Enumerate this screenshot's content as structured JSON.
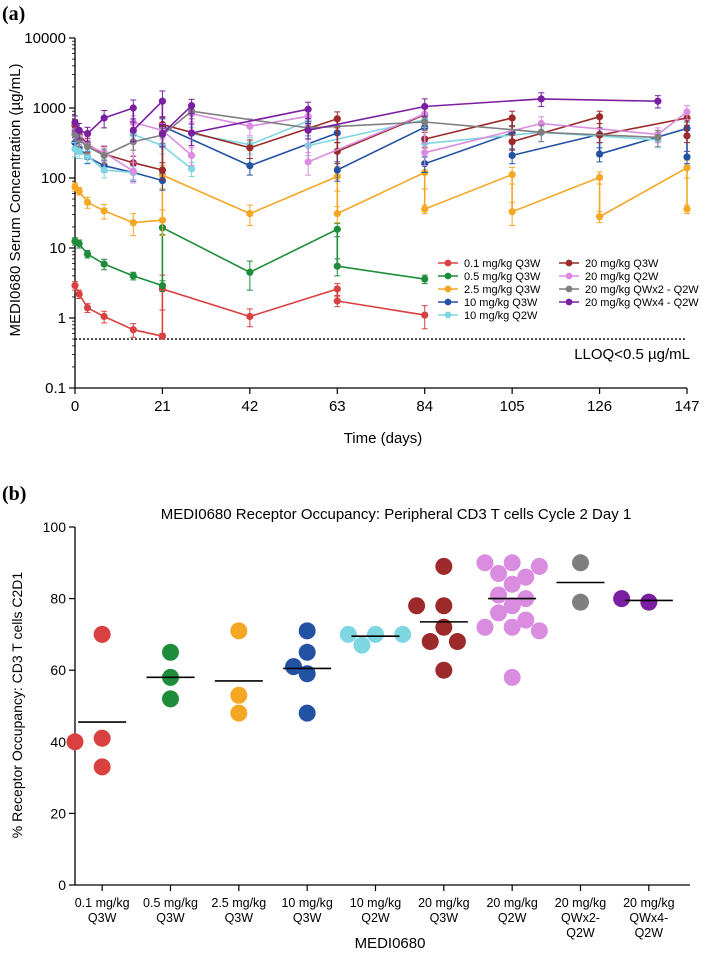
{
  "chart_data": [
    {
      "type": "line",
      "panel_label": "(a)",
      "xlabel": "Time (days)",
      "ylabel": "MEDI0680 Serum Concentration (µg/mL)",
      "y_scale": "log",
      "ylim": [
        0.1,
        10000
      ],
      "xlim": [
        0,
        147
      ],
      "x_ticks": [
        0,
        21,
        42,
        63,
        84,
        105,
        126,
        147
      ],
      "y_ticks": [
        0.1,
        1,
        10,
        100,
        1000,
        10000
      ],
      "y_tick_labels": [
        "0.1",
        "1",
        "10",
        "100",
        "1000",
        "10000"
      ],
      "grid": false,
      "legend_position": "lower-right",
      "reference_line": {
        "y": 0.5,
        "label": "LLOQ<0.5 µg/mL",
        "style": "dotted"
      },
      "series": [
        {
          "name": "0.1 mg/kg Q3W",
          "color": "#d94141",
          "x": [
            0,
            1,
            3,
            7,
            14,
            21,
            21,
            42,
            63,
            63,
            84
          ],
          "y": [
            2.9,
            2.2,
            1.4,
            1.05,
            0.68,
            0.55,
            2.6,
            1.05,
            2.6,
            1.75,
            1.1
          ],
          "err": [
            0.4,
            0.3,
            0.2,
            0.2,
            0.15,
            0.05,
            1.5,
            0.3,
            0.5,
            0.3,
            0.4
          ]
        },
        {
          "name": "0.5 mg/kg Q3W",
          "color": "#1e8c3a",
          "x": [
            0,
            1,
            3,
            7,
            14,
            21,
            21,
            42,
            63,
            63,
            84
          ],
          "y": [
            12.5,
            11.5,
            8.2,
            5.9,
            4.0,
            2.9,
            19.5,
            4.5,
            18.5,
            5.5,
            3.6
          ],
          "err": [
            1.5,
            1.5,
            1.0,
            1.0,
            0.5,
            0.5,
            4,
            2,
            4,
            1.5,
            0.5
          ]
        },
        {
          "name": "2.5 mg/kg Q3W",
          "color": "#f5a623",
          "x": [
            0,
            1,
            3,
            7,
            14,
            21,
            21,
            42,
            63,
            63,
            84,
            84,
            105,
            105,
            126,
            126,
            147,
            147
          ],
          "y": [
            75,
            65,
            45,
            34,
            23,
            25,
            110,
            31,
            105,
            31,
            120,
            36,
            112,
            33,
            102,
            28,
            140,
            36
          ],
          "err": [
            10,
            8,
            8,
            8,
            8,
            10,
            40,
            10,
            40,
            8,
            50,
            5,
            30,
            12,
            20,
            5,
            40,
            5
          ]
        },
        {
          "name": "10 mg/kg Q3W",
          "color": "#2352a3",
          "x": [
            0,
            1,
            3,
            7,
            14,
            21,
            21,
            42,
            63,
            63,
            84,
            84,
            105,
            105,
            126,
            126,
            147,
            147
          ],
          "y": [
            320,
            270,
            200,
            150,
            120,
            92,
            550,
            150,
            440,
            130,
            530,
            160,
            440,
            210,
            420,
            220,
            510,
            200
          ],
          "err": [
            60,
            50,
            40,
            30,
            30,
            25,
            150,
            40,
            120,
            40,
            150,
            40,
            120,
            50,
            100,
            50,
            120,
            40
          ]
        },
        {
          "name": "10 mg/kg Q2W",
          "color": "#7fd6e3",
          "x": [
            0,
            1,
            3,
            7,
            14,
            14,
            21,
            28,
            28,
            42,
            56,
            56,
            84,
            84,
            112,
            140
          ],
          "y": [
            260,
            240,
            205,
            130,
            120,
            420,
            290,
            135,
            430,
            300,
            650,
            290,
            680,
            310,
            450,
            350
          ],
          "err": [
            60,
            50,
            40,
            30,
            25,
            100,
            70,
            30,
            100,
            80,
            150,
            80,
            150,
            80,
            120,
            80
          ]
        },
        {
          "name": "20 mg/kg Q3W",
          "color": "#9c2a2a",
          "x": [
            0,
            1,
            3,
            7,
            14,
            21,
            21,
            42,
            63,
            63,
            84,
            84,
            105,
            105,
            126,
            126,
            147,
            147
          ],
          "y": [
            560,
            420,
            300,
            220,
            165,
            130,
            580,
            270,
            700,
            240,
            800,
            360,
            720,
            330,
            750,
            410,
            720,
            400
          ],
          "err": [
            120,
            90,
            70,
            60,
            40,
            35,
            150,
            80,
            180,
            80,
            200,
            90,
            180,
            80,
            150,
            90,
            150,
            80
          ]
        },
        {
          "name": "20 mg/kg Q2W",
          "color": "#d98ce0",
          "x": [
            0,
            1,
            3,
            7,
            14,
            14,
            21,
            28,
            28,
            42,
            56,
            56,
            84,
            84,
            112,
            140,
            147
          ],
          "y": [
            470,
            380,
            290,
            230,
            125,
            620,
            480,
            210,
            830,
            550,
            760,
            170,
            820,
            230,
            600,
            420,
            880
          ],
          "err": [
            100,
            80,
            70,
            60,
            40,
            150,
            120,
            60,
            200,
            150,
            180,
            60,
            200,
            80,
            150,
            100,
            200
          ]
        },
        {
          "name": "20 mg/kg QWx2 - Q2W",
          "color": "#7f7f7f",
          "x": [
            0,
            1,
            3,
            7,
            14,
            21,
            28,
            56,
            84,
            112,
            140
          ],
          "y": [
            420,
            350,
            280,
            210,
            330,
            410,
            900,
            520,
            630,
            450,
            380
          ],
          "err": [
            80,
            70,
            60,
            50,
            80,
            100,
            200,
            120,
            150,
            120,
            100
          ]
        },
        {
          "name": "20 mg/kg QWx4 - Q2W",
          "color": "#7a1fa2",
          "x": [
            0,
            1,
            3,
            7,
            14,
            14,
            21,
            21,
            28,
            28,
            56,
            56,
            84,
            112,
            140
          ],
          "y": [
            620,
            480,
            430,
            720,
            1000,
            480,
            1250,
            430,
            1080,
            440,
            960,
            480,
            1050,
            1350,
            1250
          ],
          "err": [
            150,
            120,
            100,
            200,
            300,
            150,
            500,
            150,
            250,
            150,
            250,
            120,
            300,
            300,
            250
          ]
        }
      ]
    },
    {
      "type": "scatter",
      "panel_label": "(b)",
      "title": "MEDI0680 Receptor Occupancy: Peripheral CD3 T cells Cycle 2 Day 1",
      "xlabel": "MEDI0680",
      "ylabel": "% Receptor Occupancy: CD3 T cells C2D1",
      "ylim": [
        0,
        100
      ],
      "y_ticks": [
        0,
        20,
        40,
        60,
        80,
        100
      ],
      "grid": false,
      "groups": [
        {
          "label": [
            "0.1 mg/kg",
            "Q3W"
          ],
          "color": "#d94141",
          "mean": 45.5,
          "values": [
            70,
            41,
            40,
            33
          ]
        },
        {
          "label": [
            "0.5 mg/kg",
            "Q3W"
          ],
          "color": "#1e8c3a",
          "mean": 58,
          "values": [
            65,
            58,
            52
          ]
        },
        {
          "label": [
            "2.5 mg/kg",
            "Q3W"
          ],
          "color": "#f5a623",
          "mean": 57,
          "values": [
            71,
            53,
            48
          ]
        },
        {
          "label": [
            "10 mg/kg",
            "Q3W"
          ],
          "color": "#2352a3",
          "mean": 60.5,
          "values": [
            71,
            65,
            61,
            59,
            48
          ]
        },
        {
          "label": [
            "10 mg/kg",
            "Q2W"
          ],
          "color": "#7fd6e3",
          "mean": 69.5,
          "values": [
            70,
            70,
            70,
            67
          ]
        },
        {
          "label": [
            "20 mg/kg",
            "Q3W"
          ],
          "color": "#9c2a2a",
          "mean": 73.5,
          "values": [
            89,
            78,
            78,
            72,
            68,
            68,
            60
          ]
        },
        {
          "label": [
            "20 mg/kg",
            "Q2W"
          ],
          "color": "#d98ce0",
          "mean": 80,
          "values": [
            90,
            90,
            89,
            87,
            86,
            84,
            81,
            80,
            78,
            76,
            74,
            72,
            72,
            71,
            58
          ]
        },
        {
          "label": [
            "20 mg/kg",
            "QWx2-",
            "Q2W"
          ],
          "color": "#7f7f7f",
          "mean": 84.5,
          "values": [
            90,
            79
          ]
        },
        {
          "label": [
            "20 mg/kg",
            "QWx4-",
            "Q2W"
          ],
          "color": "#7a1fa2",
          "mean": 79.5,
          "values": [
            79,
            80
          ]
        }
      ]
    }
  ]
}
